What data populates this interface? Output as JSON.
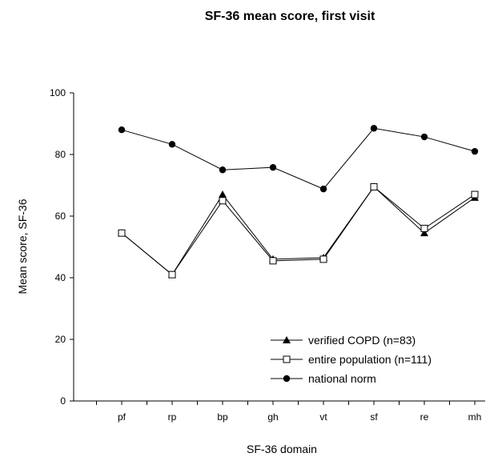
{
  "chart_data": {
    "type": "line",
    "title": "SF-36 mean score, first visit",
    "xlabel": "SF-36 domain",
    "ylabel": "Mean score, SF-36",
    "categories": [
      "pf",
      "rp",
      "bp",
      "gh",
      "vt",
      "sf",
      "re",
      "mh"
    ],
    "ylim": [
      0,
      100
    ],
    "yticks": [
      0,
      20,
      40,
      60,
      80,
      100
    ],
    "grid": false,
    "legend_position": "bottom-right",
    "series": [
      {
        "name": "verified COPD (n=83)",
        "marker": "filled-triangle",
        "values": [
          54.5,
          41.0,
          67.0,
          46.0,
          46.5,
          69.5,
          54.5,
          66.0
        ]
      },
      {
        "name": "entire population (n=111)",
        "marker": "open-square",
        "values": [
          54.5,
          41.0,
          65.0,
          45.5,
          46.0,
          69.5,
          56.0,
          67.0
        ]
      },
      {
        "name": "national norm",
        "marker": "filled-circle",
        "values": [
          88.0,
          83.3,
          75.0,
          75.8,
          68.8,
          88.5,
          85.7,
          81.0
        ]
      }
    ]
  }
}
